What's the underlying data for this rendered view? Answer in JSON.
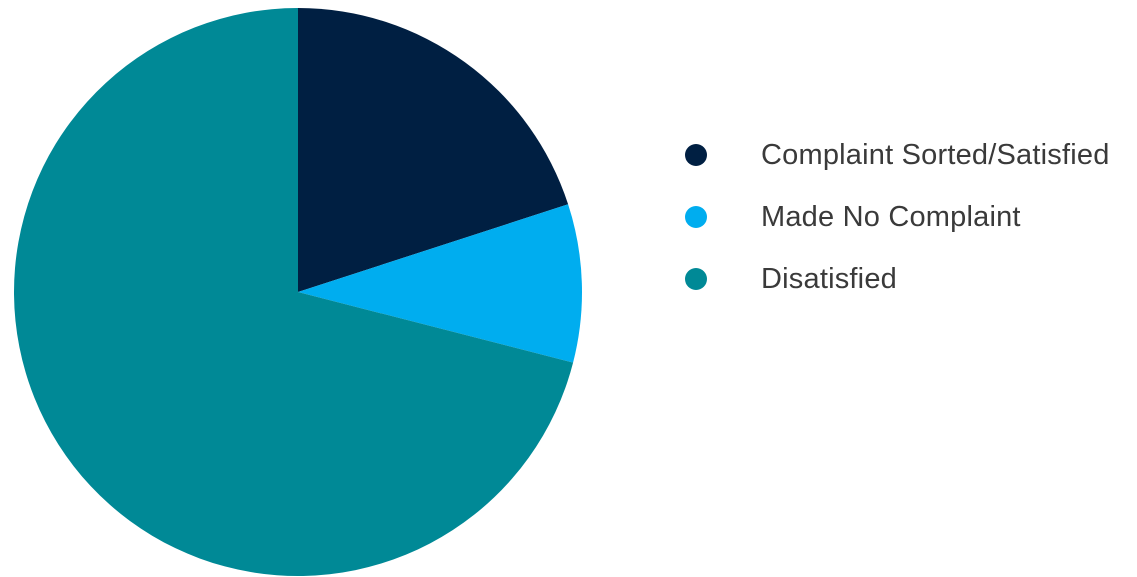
{
  "chart_data": {
    "type": "pie",
    "title": "",
    "series": [
      {
        "slices": [
          {
            "label": "Complaint Sorted/Satisfied",
            "value": 20,
            "color": "#001f42"
          },
          {
            "label": "Made No Complaint",
            "value": 9,
            "color": "#00adef"
          },
          {
            "label": "Disatisfied",
            "value": 71,
            "color": "#008996"
          }
        ]
      }
    ],
    "start_angle": "12 o'clock",
    "direction": "clockwise",
    "legend_position": "right"
  }
}
